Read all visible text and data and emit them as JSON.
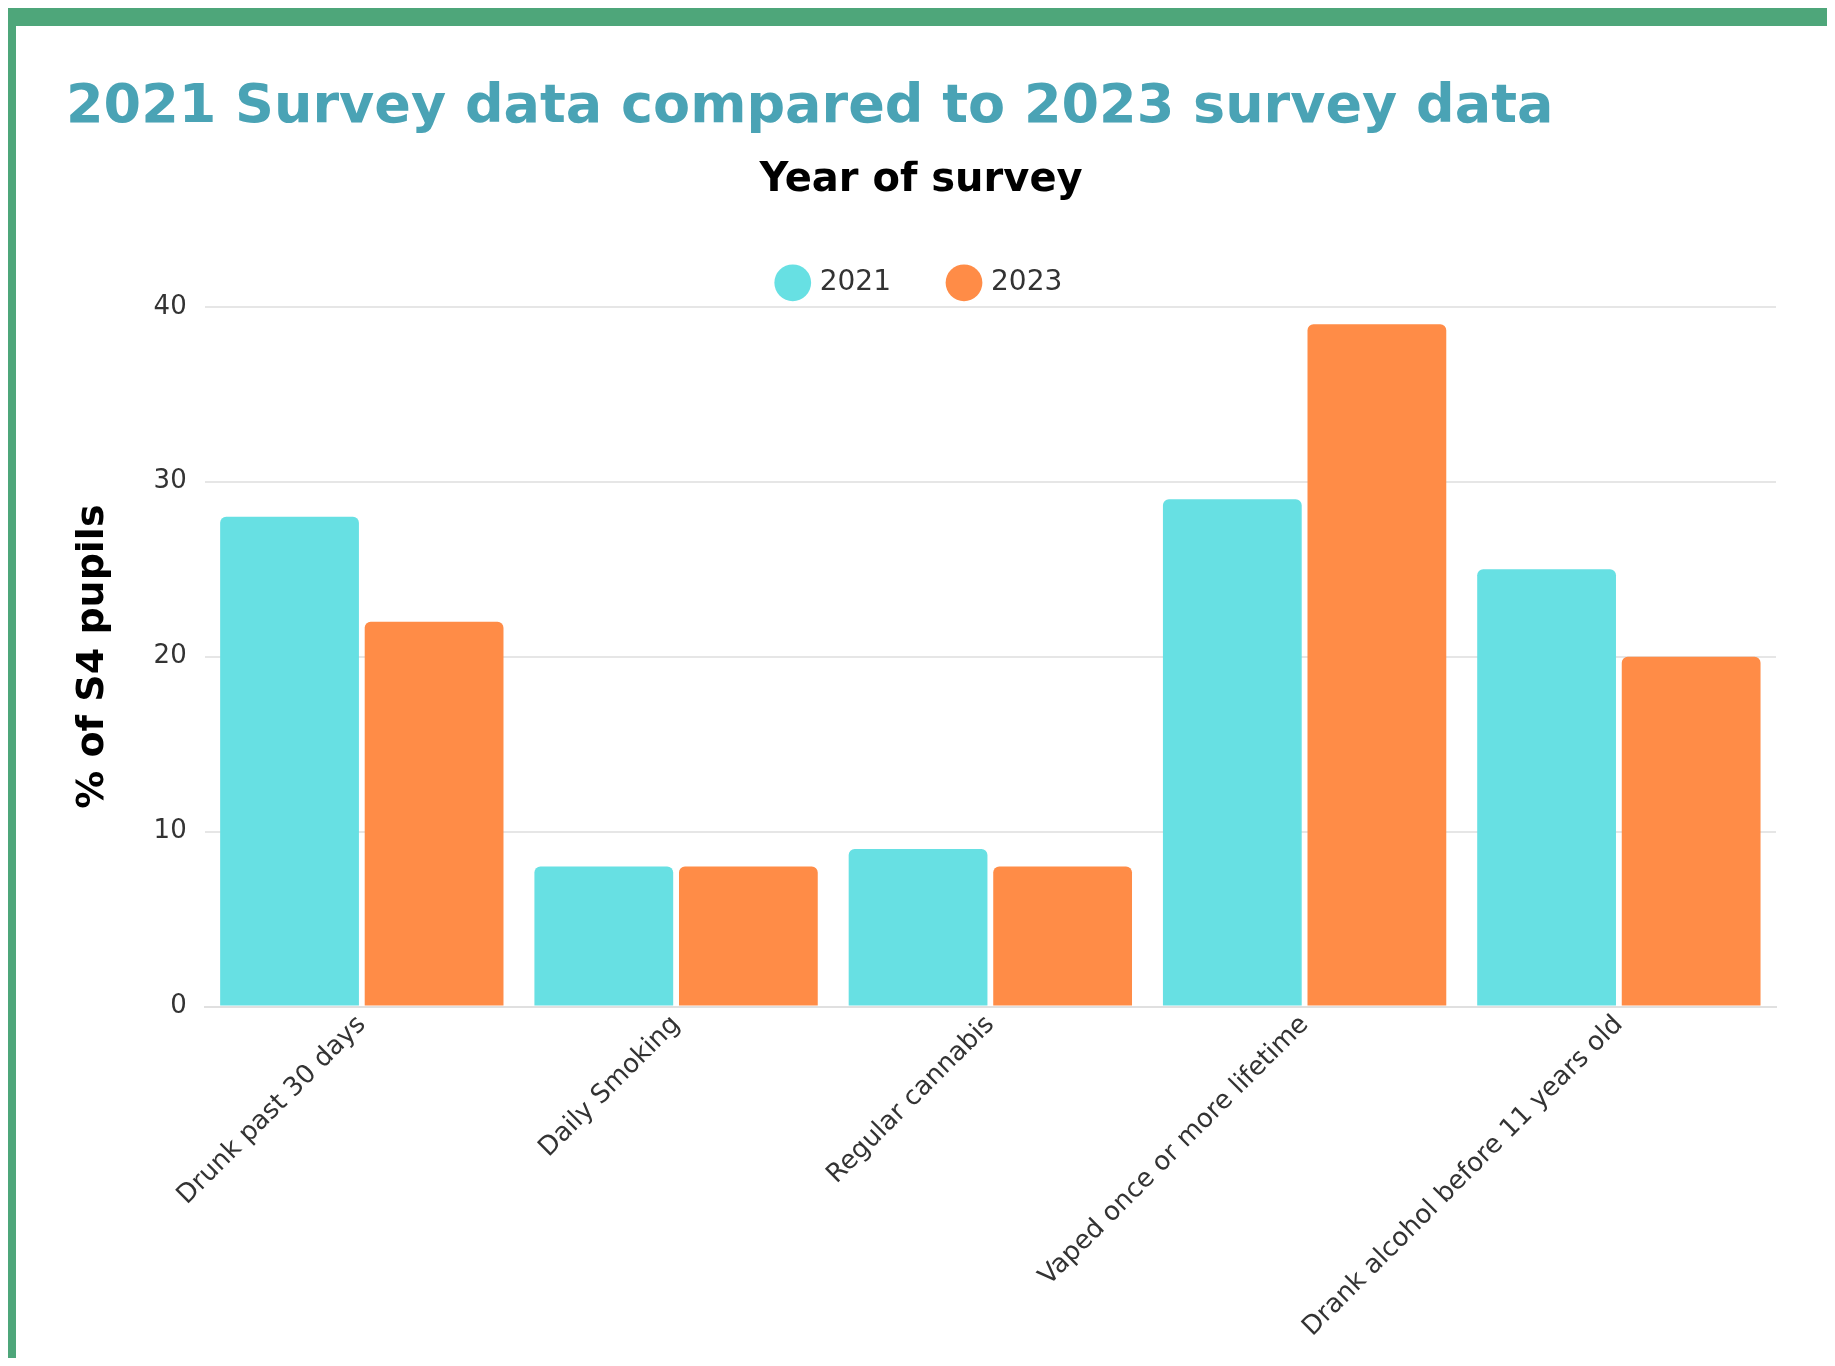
{
  "chart_data": {
    "type": "bar",
    "title": "2021 Survey data compared to 2023 survey data",
    "ylabel": "% of S4 pupils",
    "legend_title": "Year of survey",
    "categories": [
      "Drunk past 30 days",
      "Daily Smoking",
      "Regular cannabis",
      "Vaped once or more lifetime",
      "Drank alcohol before 11 years old"
    ],
    "series": [
      {
        "name": "2021",
        "color": "#67e0e3",
        "values": [
          28,
          8,
          9,
          29,
          25
        ]
      },
      {
        "name": "2023",
        "color": "#ff8c47",
        "values": [
          22,
          8,
          8,
          39,
          20
        ]
      }
    ],
    "ylim": [
      0,
      40
    ],
    "yticks": [
      0,
      10,
      20,
      30,
      40
    ],
    "grid": "y",
    "legend": "top"
  }
}
